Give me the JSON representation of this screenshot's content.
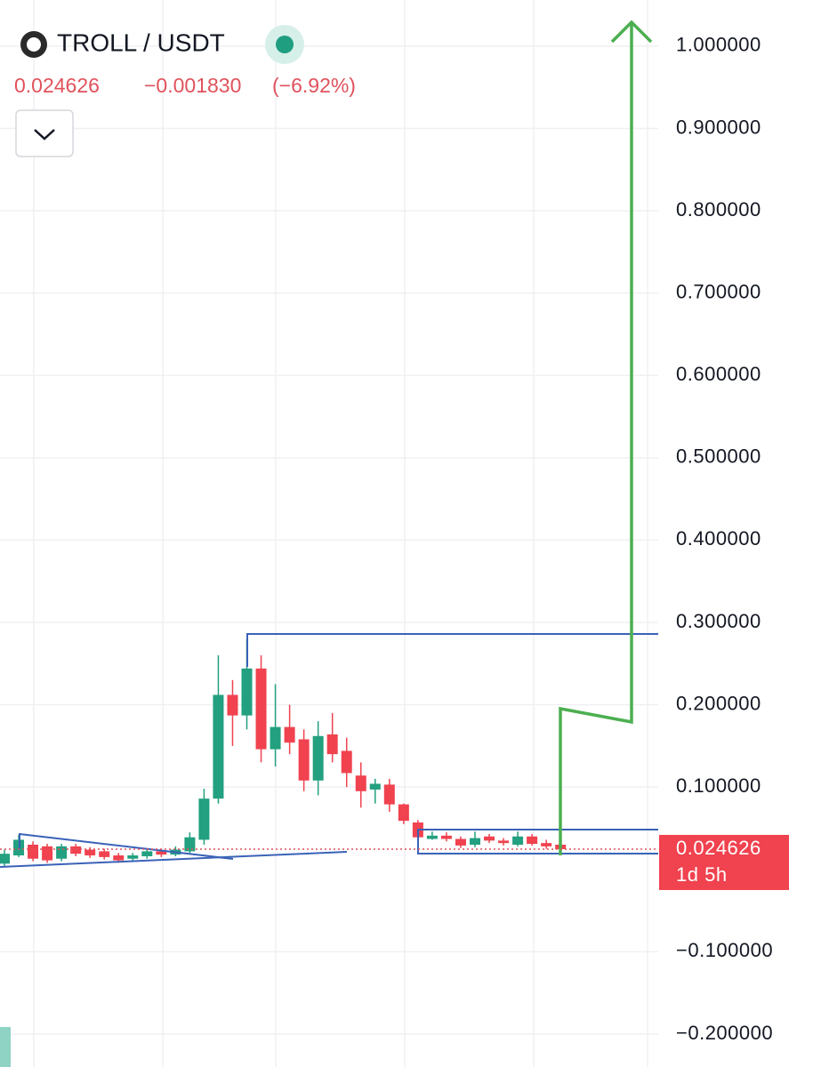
{
  "chart_data": {
    "type": "candlestick",
    "title": "TROLL / USDT",
    "last_price": 0.024626,
    "change": "−0.001830",
    "change_pct": "(−6.92%)",
    "countdown": "1d 5h",
    "up_color": "#22a07f",
    "down_color": "#f0424f",
    "categories": [
      null,
      null,
      null,
      null,
      null,
      null,
      null,
      null,
      null,
      null,
      null,
      null,
      null,
      null,
      null,
      null,
      null,
      null,
      null,
      null,
      null,
      null,
      null,
      null,
      null,
      null,
      null,
      null,
      null,
      null,
      null,
      null,
      null,
      null,
      null,
      null,
      null,
      null,
      null,
      null
    ],
    "open": [
      0.007,
      0.017,
      0.03,
      0.028,
      0.013,
      0.028,
      0.024,
      0.022,
      0.017,
      0.013,
      0.016,
      0.022,
      0.018,
      0.022,
      0.036,
      0.086,
      0.212,
      0.187,
      0.244,
      0.146,
      0.173,
      0.158,
      0.108,
      0.164,
      0.144,
      0.114,
      0.097,
      0.103,
      0.079,
      0.057,
      0.037,
      0.041,
      0.037,
      0.03,
      0.04,
      0.035,
      0.03,
      0.04,
      0.032,
      0.03
    ],
    "high": [
      0.024,
      0.042,
      0.034,
      0.031,
      0.031,
      0.031,
      0.027,
      0.025,
      0.02,
      0.02,
      0.025,
      0.025,
      0.028,
      0.045,
      0.098,
      0.26,
      0.23,
      0.28,
      0.26,
      0.225,
      0.2,
      0.17,
      0.18,
      0.19,
      0.16,
      0.13,
      0.11,
      0.11,
      0.08,
      0.06,
      0.046,
      0.045,
      0.04,
      0.046,
      0.043,
      0.038,
      0.046,
      0.043,
      0.036,
      0.031
    ],
    "low": [
      0.004,
      0.015,
      0.01,
      0.008,
      0.01,
      0.016,
      0.014,
      0.012,
      0.008,
      0.011,
      0.013,
      0.015,
      0.016,
      0.02,
      0.03,
      0.08,
      0.15,
      0.17,
      0.13,
      0.125,
      0.14,
      0.095,
      0.09,
      0.13,
      0.1,
      0.075,
      0.08,
      0.07,
      0.055,
      0.035,
      0.036,
      0.034,
      0.026,
      0.027,
      0.032,
      0.029,
      0.028,
      0.029,
      0.025,
      0.018
    ],
    "close": [
      0.019,
      0.036,
      0.013,
      0.011,
      0.028,
      0.019,
      0.017,
      0.015,
      0.011,
      0.017,
      0.022,
      0.018,
      0.024,
      0.039,
      0.086,
      0.212,
      0.187,
      0.244,
      0.146,
      0.173,
      0.154,
      0.108,
      0.162,
      0.14,
      0.117,
      0.095,
      0.104,
      0.079,
      0.059,
      0.039,
      0.041,
      0.037,
      0.029,
      0.038,
      0.035,
      0.032,
      0.04,
      0.031,
      0.028,
      0.024626
    ],
    "ylim": [
      -0.24,
      1.056
    ],
    "yticks": [
      {
        "value": 1.0,
        "label": "1.000000"
      },
      {
        "value": 0.9,
        "label": "0.900000"
      },
      {
        "value": 0.8,
        "label": "0.800000"
      },
      {
        "value": 0.7,
        "label": "0.700000"
      },
      {
        "value": 0.6,
        "label": "0.600000"
      },
      {
        "value": 0.5,
        "label": "0.500000"
      },
      {
        "value": 0.4,
        "label": "0.400000"
      },
      {
        "value": 0.3,
        "label": "0.300000"
      },
      {
        "value": 0.2,
        "label": "0.200000"
      },
      {
        "value": 0.1,
        "label": "0.100000"
      },
      {
        "value": -0.1,
        "label": "−0.100000"
      },
      {
        "value": -0.2,
        "label": "−0.200000"
      }
    ],
    "grid": true
  }
}
